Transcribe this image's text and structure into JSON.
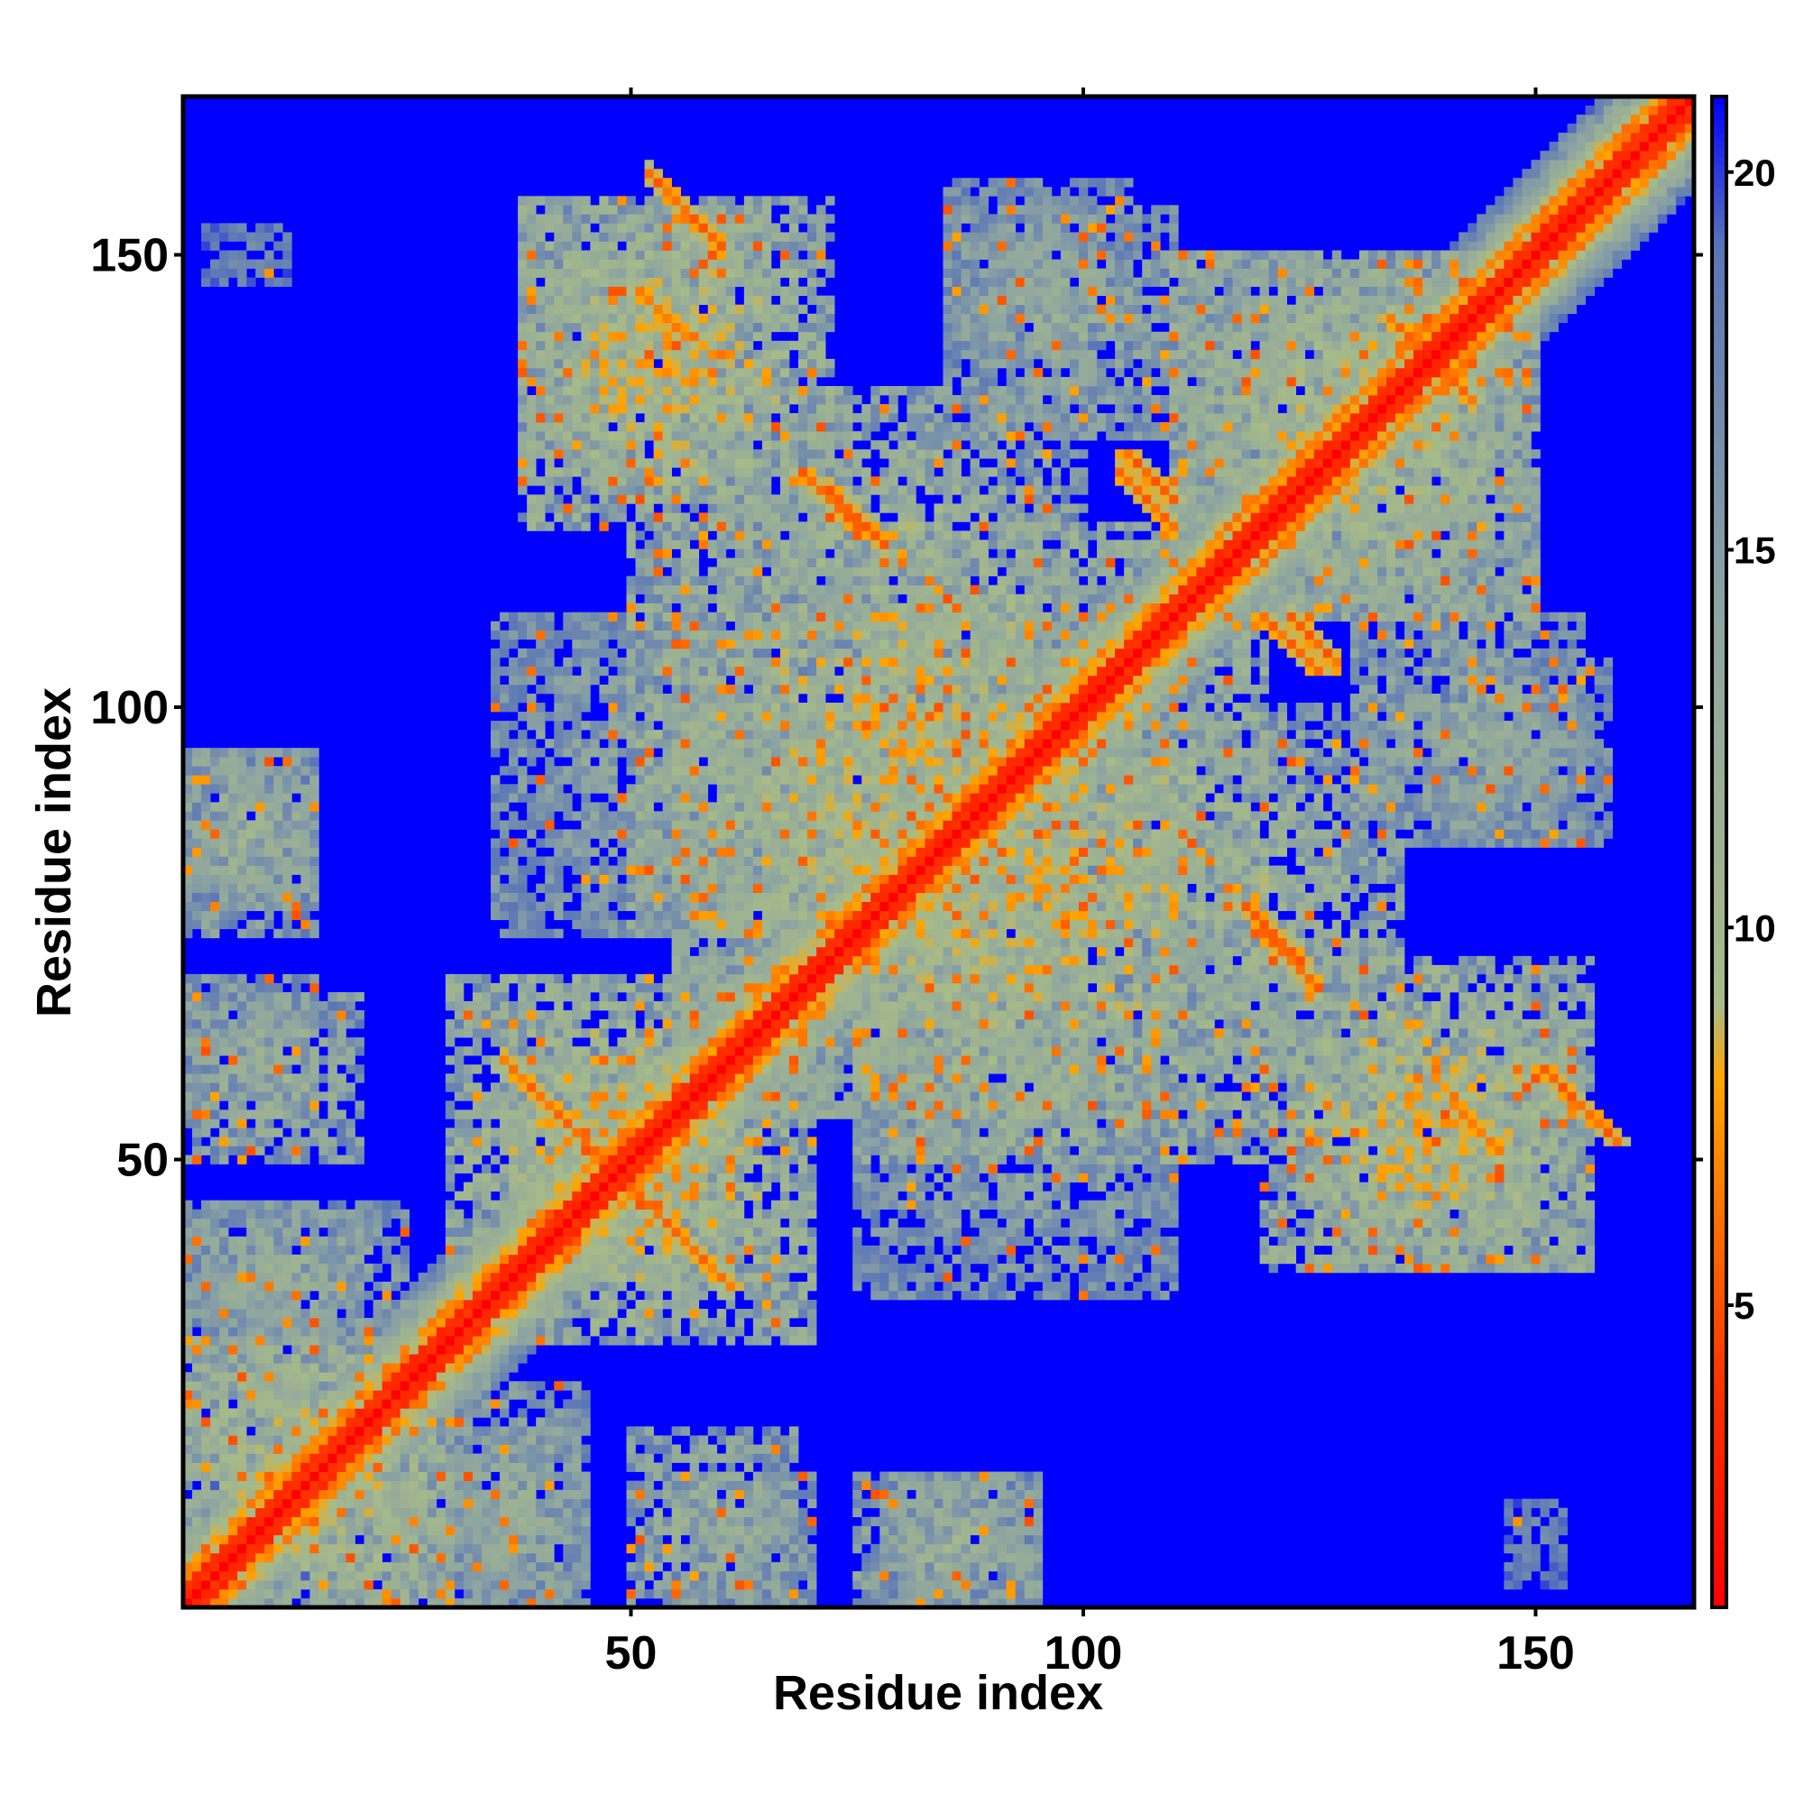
{
  "chart_data": {
    "type": "heatmap",
    "title": "",
    "xlabel": "Residue index",
    "ylabel": "Residue index",
    "n_residues": 167,
    "xlim": [
      1,
      167
    ],
    "ylim": [
      1,
      167
    ],
    "x_ticks": [
      50,
      100,
      150
    ],
    "y_ticks": [
      50,
      100,
      150
    ],
    "x_tick_labels": [
      "50",
      "100",
      "150"
    ],
    "y_tick_labels": [
      "50",
      "100",
      "150"
    ],
    "value_meaning": "pairwise residue distance (Å), values above 21 shown as background",
    "color_scale": {
      "range": [
        1,
        21
      ],
      "ticks": [
        5,
        10,
        15,
        20
      ],
      "tick_labels": [
        "5",
        "10",
        "15",
        "20"
      ],
      "stops": [
        {
          "value": 1,
          "color": "#ff0000"
        },
        {
          "value": 4,
          "color": "#ff3300"
        },
        {
          "value": 8,
          "color": "#ffa500"
        },
        {
          "value": 9,
          "color": "#a8bb88"
        },
        {
          "value": 14,
          "color": "#8fa6a0"
        },
        {
          "value": 19,
          "color": "#5a75b8"
        },
        {
          "value": 21,
          "color": "#0000ff"
        }
      ]
    },
    "background_color": "#0000ff",
    "diagonal_distance": 0,
    "secondary_structure_bands": [
      {
        "type": "parallel",
        "i_start": 115,
        "i_end": 160,
        "offset": 4,
        "distance": 6
      },
      {
        "type": "antiparallel",
        "center_sum": 97,
        "i_start": 36,
        "i_end": 58,
        "distance": 5.5
      },
      {
        "type": "antiparallel",
        "center_sum": 211,
        "i_start": 52,
        "i_end": 60,
        "distance": 5
      },
      {
        "type": "antiparallel",
        "center_sum": 196,
        "i_start": 72,
        "i_end": 78,
        "distance": 5
      },
      {
        "type": "antiparallel",
        "center_sum": 230,
        "i_start": 104,
        "i_end": 110,
        "distance": 5
      },
      {
        "type": "antiparallel",
        "center_sum": 233,
        "i_start": 123,
        "i_end": 128,
        "distance": 5
      },
      {
        "type": "antiparallel",
        "center_sum": 195,
        "i_start": 120,
        "i_end": 126,
        "distance": 5
      },
      {
        "type": "antiparallel",
        "center_sum": 197,
        "i_start": 141,
        "i_end": 146,
        "distance": 5.5
      },
      {
        "type": "antiparallel",
        "center_sum": 277,
        "i_start": 134,
        "i_end": 143,
        "distance": 5.5
      }
    ],
    "contact_regions": [
      {
        "x": [
          1,
          30
        ],
        "y": [
          1,
          30
        ],
        "distance_min": 6,
        "distance_max": 18
      },
      {
        "x": [
          30,
          62
        ],
        "y": [
          36,
          70
        ],
        "distance_min": 6,
        "distance_max": 18
      },
      {
        "x": [
          38,
          72
        ],
        "y": [
          120,
          156
        ],
        "distance_min": 6,
        "distance_max": 18
      },
      {
        "x": [
          50,
          110
        ],
        "y": [
          75,
          120
        ],
        "distance_min": 6,
        "distance_max": 18
      },
      {
        "x": [
          55,
          110
        ],
        "y": [
          55,
          100
        ],
        "distance_min": 7,
        "distance_max": 19
      },
      {
        "x": [
          75,
          110
        ],
        "y": [
          35,
          60
        ],
        "distance_min": 12,
        "distance_max": 19
      },
      {
        "x": [
          85,
          110
        ],
        "y": [
          130,
          155
        ],
        "distance_min": 10,
        "distance_max": 19
      },
      {
        "x": [
          110,
          150
        ],
        "y": [
          110,
          150
        ],
        "distance_min": 7,
        "distance_max": 18
      },
      {
        "x": [
          108,
          135
        ],
        "y": [
          60,
          100
        ],
        "distance_min": 8,
        "distance_max": 19
      },
      {
        "x": [
          125,
          155
        ],
        "y": [
          38,
          65
        ],
        "distance_min": 6,
        "distance_max": 18
      },
      {
        "x": [
          140,
          158
        ],
        "y": [
          85,
          105
        ],
        "distance_min": 12,
        "distance_max": 19
      },
      {
        "x": [
          1,
          15
        ],
        "y": [
          55,
          70
        ],
        "distance_min": 10,
        "distance_max": 19
      },
      {
        "x": [
          1,
          15
        ],
        "y": [
          78,
          95
        ],
        "distance_min": 10,
        "distance_max": 19
      },
      {
        "x": [
          1,
          25
        ],
        "y": [
          30,
          45
        ],
        "distance_min": 10,
        "distance_max": 19
      },
      {
        "x": [
          30,
          45
        ],
        "y": [
          1,
          20
        ],
        "distance_min": 10,
        "distance_max": 19
      },
      {
        "x": [
          50,
          68
        ],
        "y": [
          1,
          20
        ],
        "distance_min": 9,
        "distance_max": 19
      },
      {
        "x": [
          75,
          95
        ],
        "y": [
          1,
          15
        ],
        "distance_min": 9,
        "distance_max": 19
      },
      {
        "x": [
          3,
          12
        ],
        "y": [
          147,
          153
        ],
        "distance_min": 15,
        "distance_max": 20
      }
    ]
  }
}
